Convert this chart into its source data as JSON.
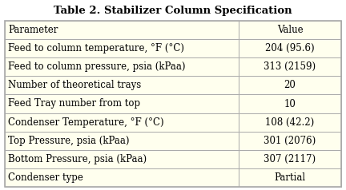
{
  "title": "Table 2. Stabilizer Column Specification",
  "headers": [
    "Parameter",
    "Value"
  ],
  "rows": [
    [
      "Feed to column temperature, °F (°C)",
      "204 (95.6)"
    ],
    [
      "Feed to column pressure, psia (kPaa)",
      "313 (2159)"
    ],
    [
      "Number of theoretical trays",
      "20"
    ],
    [
      "Feed Tray number from top",
      "10"
    ],
    [
      "Condenser Temperature, °F (°C)",
      "108 (42.2)"
    ],
    [
      "Top Pressure, psia (kPaa)",
      "301 (2076)"
    ],
    [
      "Bottom Pressure, psia (kPaa)",
      "307 (2117)"
    ],
    [
      "Condenser type",
      "Partial"
    ]
  ],
  "border_color": "#aaaaaa",
  "title_fontsize": 9.5,
  "cell_fontsize": 8.5,
  "col_split": 0.695,
  "background_color": "#ffffff",
  "table_bg": "#ffffee",
  "fig_width": 4.32,
  "fig_height": 2.38,
  "dpi": 100
}
